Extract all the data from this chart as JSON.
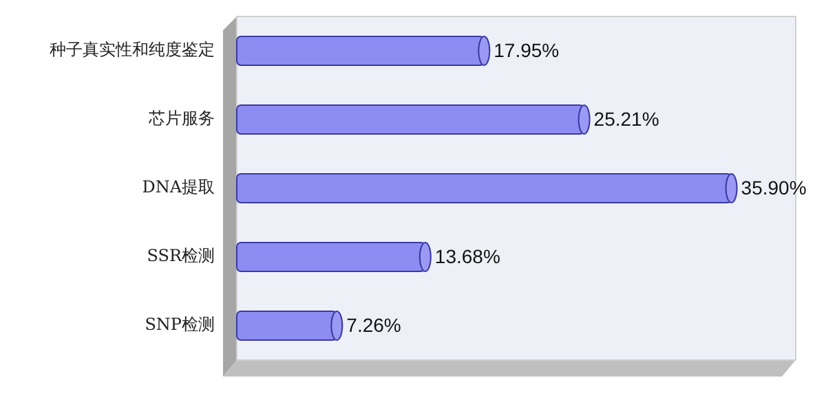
{
  "chart_data": {
    "type": "bar",
    "orientation": "horizontal",
    "categories": [
      "种子真实性和纯度鉴定",
      "芯片服务",
      "DNA提取",
      "SSR检测",
      "SNP检测"
    ],
    "values": [
      17.95,
      25.21,
      35.9,
      13.68,
      7.26
    ],
    "value_labels": [
      "17.95%",
      "25.21%",
      "35.90%",
      "13.68%",
      "7.26%"
    ],
    "color": "#8c8cf2"
  }
}
